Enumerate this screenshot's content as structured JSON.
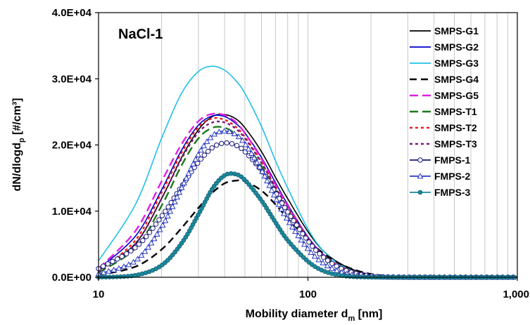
{
  "chart_data": {
    "type": "line",
    "panel_label": "NaCl-1",
    "xlabel_main": "Mobility diameter d",
    "xlabel_sub": "m",
    "xlabel_tail": " [nm]",
    "ylabel_main": "dN/dlogd",
    "ylabel_sub": "p",
    "ylabel_tail": " [#/cm³]",
    "x_scale": "log",
    "xlim": [
      10,
      1000
    ],
    "ylim": [
      0,
      40000
    ],
    "x_ticks": [
      10,
      100,
      1000
    ],
    "x_tick_labels": [
      "10",
      "100",
      "1,000"
    ],
    "y_ticks": [
      0,
      10000,
      20000,
      30000,
      40000
    ],
    "y_tick_labels": [
      "0.0E+00",
      "1.0E+04",
      "2.0E+04",
      "3.0E+04",
      "4.0E+04"
    ],
    "grid": "vertical log minor lines",
    "legend_position": "top-right",
    "series": [
      {
        "name": "SMPS-G1",
        "color": "#000000",
        "dash": "solid",
        "marker": "none",
        "x": [
          10,
          15,
          20,
          25,
          30,
          35,
          40,
          45,
          50,
          60,
          70,
          80,
          100,
          120,
          150,
          200,
          300,
          500,
          1000
        ],
        "y": [
          1000,
          5100,
          11900,
          18200,
          22300,
          24300,
          24600,
          24000,
          22600,
          19000,
          15100,
          11900,
          6900,
          3800,
          1700,
          400,
          0,
          0,
          0
        ]
      },
      {
        "name": "SMPS-G2",
        "color": "#0000cc",
        "dash": "solid",
        "marker": "none",
        "x": [
          10,
          15,
          20,
          25,
          30,
          35,
          40,
          45,
          50,
          60,
          70,
          80,
          100,
          120,
          150,
          200,
          300,
          500,
          1000
        ],
        "y": [
          1300,
          6200,
          13200,
          19300,
          23000,
          24400,
          24300,
          23300,
          21800,
          18100,
          14300,
          11000,
          6100,
          3300,
          1300,
          300,
          0,
          0,
          0
        ]
      },
      {
        "name": "SMPS-G3",
        "color": "#1fc0e8",
        "dash": "solid",
        "marker": "none",
        "x": [
          10,
          15,
          20,
          25,
          30,
          35,
          40,
          45,
          50,
          60,
          70,
          80,
          100,
          120,
          150,
          200,
          300,
          500,
          1000
        ],
        "y": [
          2500,
          11000,
          21000,
          27900,
          31100,
          31900,
          31300,
          29800,
          27800,
          22800,
          17600,
          13500,
          7300,
          3800,
          1500,
          300,
          0,
          0,
          0
        ]
      },
      {
        "name": "SMPS-G4",
        "color": "#000000",
        "dash": "10,6",
        "marker": "none",
        "x": [
          10,
          15,
          20,
          25,
          30,
          35,
          40,
          45,
          50,
          60,
          70,
          80,
          100,
          120,
          150,
          200,
          300,
          500,
          1000
        ],
        "y": [
          300,
          1600,
          4200,
          7500,
          10500,
          12800,
          14200,
          14600,
          14500,
          13100,
          11000,
          8900,
          5700,
          3500,
          1700,
          500,
          0,
          0,
          0
        ]
      },
      {
        "name": "SMPS-G5",
        "color": "#e020e0",
        "dash": "12,6",
        "marker": "none",
        "x": [
          10,
          15,
          20,
          25,
          30,
          35,
          40,
          45,
          50,
          60,
          70,
          80,
          100,
          120,
          150,
          200,
          300,
          500,
          1000
        ],
        "y": [
          1300,
          7000,
          14500,
          20200,
          23600,
          24700,
          24500,
          23500,
          21800,
          17900,
          14000,
          10800,
          6000,
          3200,
          1300,
          300,
          0,
          0,
          0
        ]
      },
      {
        "name": "SMPS-T1",
        "color": "#1a7a1a",
        "dash": "12,6",
        "marker": "none",
        "x": [
          10,
          15,
          20,
          25,
          30,
          35,
          40,
          45,
          50,
          60,
          70,
          80,
          100,
          120,
          150,
          200,
          300,
          500,
          1000
        ],
        "y": [
          700,
          4400,
          10800,
          17000,
          21000,
          22600,
          22600,
          21700,
          20300,
          16800,
          13200,
          10200,
          5800,
          3100,
          1300,
          300,
          0,
          0,
          0
        ]
      },
      {
        "name": "SMPS-T2",
        "color": "#ee1c1c",
        "dash": "4,4",
        "marker": "none",
        "x": [
          10,
          15,
          20,
          25,
          30,
          35,
          40,
          45,
          50,
          60,
          70,
          80,
          100,
          120,
          150,
          200,
          300,
          500,
          1000
        ],
        "y": [
          900,
          5600,
          12800,
          18900,
          22700,
          24000,
          23800,
          22800,
          21200,
          17400,
          13600,
          10500,
          5900,
          3200,
          1300,
          300,
          0,
          0,
          0
        ]
      },
      {
        "name": "SMPS-T3",
        "color": "#7a1a7a",
        "dash": "4,4",
        "marker": "none",
        "x": [
          10,
          15,
          20,
          25,
          30,
          35,
          40,
          45,
          50,
          60,
          70,
          80,
          100,
          120,
          150,
          200,
          300,
          500,
          1000
        ],
        "y": [
          800,
          5000,
          11900,
          18000,
          21900,
          23400,
          23400,
          22500,
          21000,
          17300,
          13500,
          10400,
          5800,
          3100,
          1300,
          300,
          0,
          0,
          0
        ]
      },
      {
        "name": "FMPS-1",
        "color": "#1a1a7a",
        "dash": "solid",
        "marker": "circle",
        "x": [
          10,
          15,
          20,
          25,
          30,
          35,
          40,
          45,
          50,
          60,
          70,
          80,
          100,
          120,
          150,
          200,
          300,
          500,
          1000
        ],
        "y": [
          1300,
          4500,
          9200,
          13800,
          17400,
          19600,
          20300,
          20000,
          19000,
          16100,
          12800,
          9900,
          5500,
          2900,
          1100,
          200,
          0,
          0,
          0
        ]
      },
      {
        "name": "FMPS-2",
        "color": "#2a3ac0",
        "dash": "solid",
        "marker": "triangle",
        "x": [
          10,
          15,
          20,
          25,
          30,
          35,
          40,
          45,
          50,
          60,
          70,
          80,
          100,
          120,
          150,
          200,
          300,
          500,
          1000
        ],
        "y": [
          500,
          2500,
          7600,
          13600,
          18600,
          21400,
          22100,
          21600,
          20200,
          16200,
          12000,
          8700,
          4300,
          2000,
          600,
          100,
          0,
          0,
          0
        ]
      },
      {
        "name": "FMPS-3",
        "color": "#1a8aa0",
        "dash": "solid",
        "marker": "dot",
        "x": [
          10,
          15,
          20,
          25,
          30,
          35,
          40,
          45,
          50,
          60,
          70,
          80,
          100,
          120,
          150,
          200,
          300,
          500,
          1000
        ],
        "y": [
          0,
          300,
          1800,
          5200,
          9500,
          13400,
          15400,
          15600,
          14700,
          11600,
          8300,
          5600,
          2400,
          900,
          200,
          0,
          0,
          0,
          0
        ]
      }
    ]
  }
}
